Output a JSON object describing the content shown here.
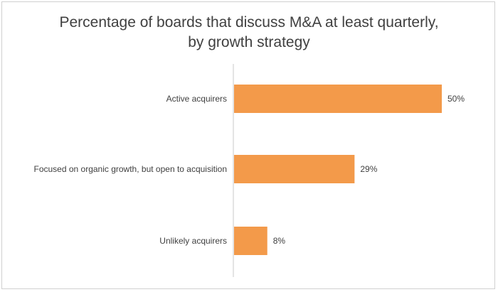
{
  "chart_data": {
    "type": "bar",
    "orientation": "horizontal",
    "title_line1": "Percentage of boards that discuss M&A at least quarterly,",
    "title_line2": "by growth strategy",
    "categories": [
      "Active acquirers",
      "Focused on organic growth, but open to acquisition",
      "Unlikely acquirers"
    ],
    "values": [
      50,
      29,
      8
    ],
    "value_labels": [
      "50%",
      "29%",
      "8%"
    ],
    "xlim": [
      0,
      50
    ],
    "grid": false,
    "bar_color": "#F39A4A",
    "axis_color": "#c8c8c8"
  }
}
